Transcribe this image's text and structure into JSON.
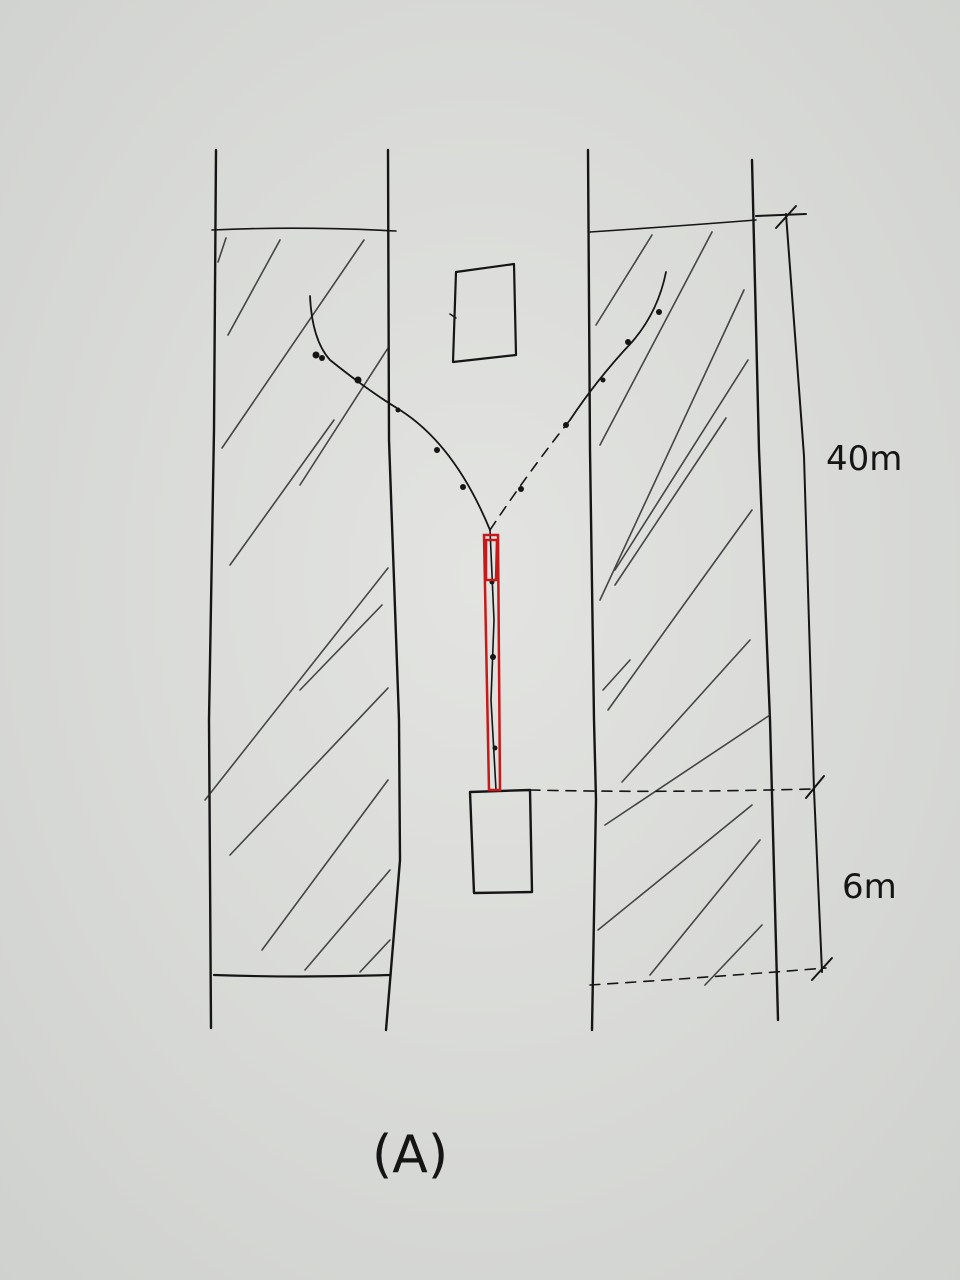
{
  "diagram": {
    "caption": "(A)",
    "dimension_upper": "40m",
    "dimension_lower": "6m"
  },
  "colors": {
    "paper": "#dcdedb",
    "ink": "#151515",
    "highlight": "#c61a1a"
  }
}
